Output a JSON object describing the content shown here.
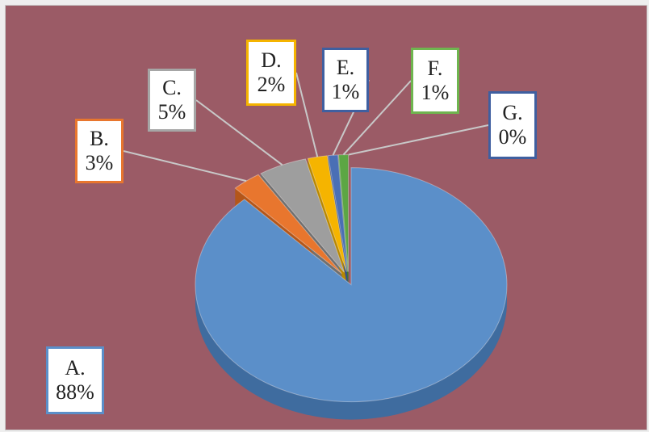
{
  "colors": {
    "background": "#9b5b66",
    "label_fill": "#ffffff",
    "leader_line": "#c8c8c8"
  },
  "chart_data": {
    "type": "pie",
    "subtype": "3d-exploded",
    "slices": [
      {
        "label": "A.",
        "value": 88,
        "pct": "88%",
        "color": "#5b8fc9",
        "dark": "#3f6c9f",
        "border": "#5b8fc9"
      },
      {
        "label": "B.",
        "value": 3,
        "pct": "3%",
        "color": "#e8762e",
        "dark": "#b45619",
        "border": "#e8762e"
      },
      {
        "label": "C.",
        "value": 5,
        "pct": "5%",
        "color": "#9e9e9e",
        "dark": "#6f6f6f",
        "border": "#a6a6a6"
      },
      {
        "label": "D.",
        "value": 2,
        "pct": "2%",
        "color": "#f5b400",
        "dark": "#b88700",
        "border": "#f5b400"
      },
      {
        "label": "E.",
        "value": 1,
        "pct": "1%",
        "color": "#4a6fb5",
        "dark": "#34508a",
        "border": "#3f5fa0"
      },
      {
        "label": "F.",
        "value": 1,
        "pct": "1%",
        "color": "#5ca644",
        "dark": "#3f7a2d",
        "border": "#6fb54f"
      },
      {
        "label": "G.",
        "value": 0,
        "pct": "0%",
        "color": "#3f5fa0",
        "dark": "#2f4a7d",
        "border": "#3f5fa0"
      }
    ],
    "legend": "none"
  }
}
